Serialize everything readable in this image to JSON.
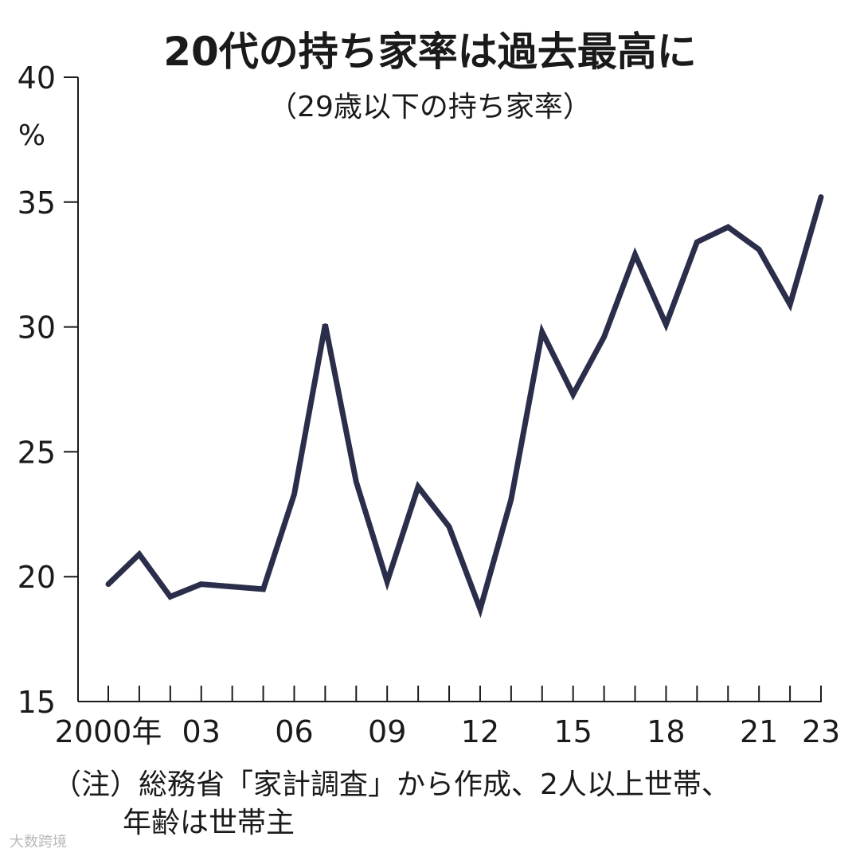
{
  "chart_data": {
    "type": "line",
    "title": "20代の持ち家率は過去最高に",
    "subtitle": "（29歳以下の持ち家率）",
    "ylabel": "%",
    "ylim": [
      15,
      40
    ],
    "yticks": [
      15,
      20,
      25,
      30,
      35,
      40
    ],
    "xlim": [
      2000,
      2023
    ],
    "xtick_labels": [
      {
        "x": 2000,
        "label": "2000年"
      },
      {
        "x": 2003,
        "label": "03"
      },
      {
        "x": 2006,
        "label": "06"
      },
      {
        "x": 2009,
        "label": "09"
      },
      {
        "x": 2012,
        "label": "12"
      },
      {
        "x": 2015,
        "label": "15"
      },
      {
        "x": 2018,
        "label": "18"
      },
      {
        "x": 2021,
        "label": "21"
      },
      {
        "x": 2023,
        "label": "23"
      }
    ],
    "grid": false,
    "legend": "none",
    "line_color": "#2b2e4a",
    "series": [
      {
        "x": [
          2000,
          2001,
          2002,
          2003,
          2004,
          2005,
          2006,
          2007,
          2008,
          2009,
          2010,
          2011,
          2012,
          2013,
          2014,
          2015,
          2016,
          2017,
          2018,
          2019,
          2020,
          2021,
          2022,
          2023
        ],
        "values": [
          19.7,
          20.9,
          19.2,
          19.7,
          19.6,
          19.5,
          23.3,
          30.1,
          23.8,
          19.8,
          23.6,
          22.0,
          18.7,
          23.1,
          29.8,
          27.3,
          29.6,
          32.9,
          30.1,
          33.4,
          34.0,
          33.1,
          30.9,
          35.2
        ]
      }
    ]
  },
  "note": {
    "line1": "（注）総務省「家計調査」から作成、2人以上世帯、",
    "line2": "年齢は世帯主"
  },
  "watermark": "大数跨境"
}
